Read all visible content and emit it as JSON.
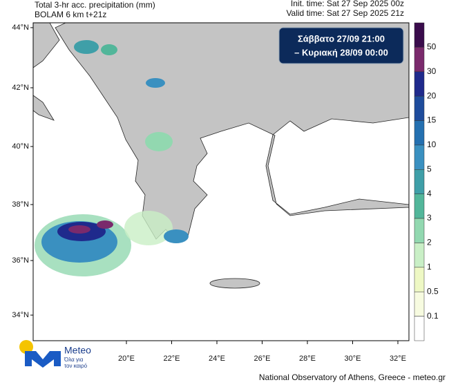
{
  "header": {
    "title_line1": "Total 3-hr acc. precipitation (mm)",
    "title_line2": "BOLAM 6 km t+21z",
    "init_time": "Init. time: Sat 27 Sep 2025 00z",
    "valid_time": "Valid time: Sat 27 Sep 2025 21z"
  },
  "info_box": {
    "line1": "Σάββατο 27/09 21:00",
    "line2": "– Κυριακή 28/09 00:00"
  },
  "map": {
    "lat_labels": [
      "44°N",
      "42°N",
      "40°N",
      "38°N",
      "36°N",
      "34°N"
    ],
    "lon_labels": [
      "20°E",
      "22°E",
      "24°E",
      "26°E",
      "28°E",
      "30°E",
      "32°E"
    ]
  },
  "colorbar": {
    "labels": [
      "50",
      "30",
      "20",
      "15",
      "10",
      "5",
      "4",
      "3",
      "2",
      "1",
      "0.5",
      "0.1"
    ],
    "colors": [
      "#3a0c4c",
      "#7a2a6c",
      "#1f2a8c",
      "#1e4c9c",
      "#2470b0",
      "#3a90c0",
      "#3f9fa8",
      "#52b69a",
      "#92d8b0",
      "#c9efc6",
      "#eef8c4",
      "#f7fbe0",
      "#ffffff"
    ]
  },
  "logo": {
    "name": "Meteo",
    "tagline_line1": "Όλα για",
    "tagline_line2": "τον καιρό"
  },
  "footer": "National Observatory of Athens, Greece - meteo.gr"
}
